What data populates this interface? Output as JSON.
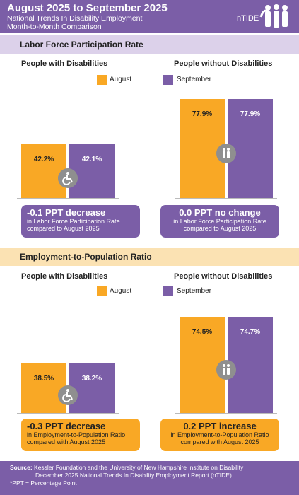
{
  "header": {
    "title": "August 2025 to September 2025",
    "subtitle_line1": "National Trends In Disability Employment",
    "subtitle_line2": "Month-to-Month Comparison",
    "logo_text": "nTIDE"
  },
  "colors": {
    "purple": "#7b5ea7",
    "orange": "#f9a825",
    "band_purple": "#dcd1ea",
    "band_orange": "#fbe2b3",
    "icon_gray": "#8f8f8f"
  },
  "legend": {
    "august": "August",
    "september": "September"
  },
  "chart_data": [
    {
      "type": "bar",
      "title": "Labor Force Participation Rate",
      "categories": [
        "People with Disabilities",
        "People without Disabilities"
      ],
      "series": [
        {
          "name": "August",
          "values": [
            42.2,
            77.9
          ],
          "labels": [
            "42.2%",
            "77.9%"
          ]
        },
        {
          "name": "September",
          "values": [
            42.1,
            77.9
          ],
          "labels": [
            "42.1%",
            "77.9%"
          ]
        }
      ],
      "ylim": [
        0,
        100
      ],
      "summaries": [
        {
          "main": "-0.1 PPT  decrease",
          "sub1": "in Labor Force Participation Rate",
          "sub2": "compared to August 2025"
        },
        {
          "main": "0.0 PPT  no change",
          "sub1": "in Labor Force Participation Rate",
          "sub2": "compared to August 2025"
        }
      ]
    },
    {
      "type": "bar",
      "title": "Employment-to-Population Ratio",
      "categories": [
        "People with Disabilities",
        "People without Disabilities"
      ],
      "series": [
        {
          "name": "August",
          "values": [
            38.5,
            74.5
          ],
          "labels": [
            "38.5%",
            "74.5%"
          ]
        },
        {
          "name": "September",
          "values": [
            38.2,
            74.7
          ],
          "labels": [
            "38.2%",
            "74.7%"
          ]
        }
      ],
      "ylim": [
        0,
        100
      ],
      "summaries": [
        {
          "main": "-0.3 PPT  decrease",
          "sub1": "in Employment-to-Population Ratio",
          "sub2": "compared with August 2025"
        },
        {
          "main": "0.2 PPT  increase",
          "sub1": "in Employment-to-Population Ratio",
          "sub2": "compared with August 2025"
        }
      ]
    }
  ],
  "footer": {
    "source_label": "Source:",
    "source_line1": "Kessler Foundation and the University of New Hampshire Institute on Disability",
    "source_line2": "December 2025 National Trends In Disability Employment Report (nTIDE)",
    "note": "*PPT = Percentage Point"
  }
}
